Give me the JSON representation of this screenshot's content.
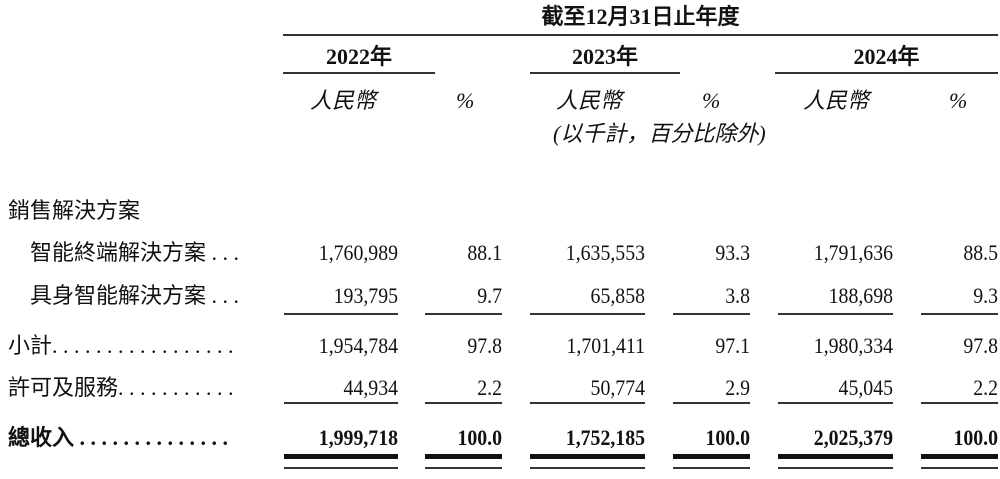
{
  "header": {
    "period": "截至12月31日止年度",
    "years": [
      "2022年",
      "2023年",
      "2024年"
    ],
    "currency": "人民幣",
    "percent": "%",
    "note": "(以千計，百分比除外)"
  },
  "rows": [
    {
      "label": "銷售解決方案",
      "values": []
    },
    {
      "label": "智能終端解決方案 . . .",
      "values": [
        "1,760,989",
        "88.1",
        "1,635,553",
        "93.3",
        "1,791,636",
        "88.5"
      ]
    },
    {
      "label": "具身智能解決方案 . . .",
      "values": [
        "193,795",
        "9.7",
        "65,858",
        "3.8",
        "188,698",
        "9.3"
      ]
    },
    {
      "label": "小計. . . . . . . . . . . . . . . . .",
      "values": [
        "1,954,784",
        "97.8",
        "1,701,411",
        "97.1",
        "1,980,334",
        "97.8"
      ]
    },
    {
      "label": "許可及服務. . . . . . . . . . .",
      "values": [
        "44,934",
        "2.2",
        "50,774",
        "2.9",
        "45,045",
        "2.2"
      ]
    },
    {
      "label": "總收入 . . . . . . . . . . . . . .",
      "values": [
        "1,999,718",
        "100.0",
        "1,752,185",
        "100.0",
        "2,025,379",
        "100.0"
      ]
    }
  ]
}
